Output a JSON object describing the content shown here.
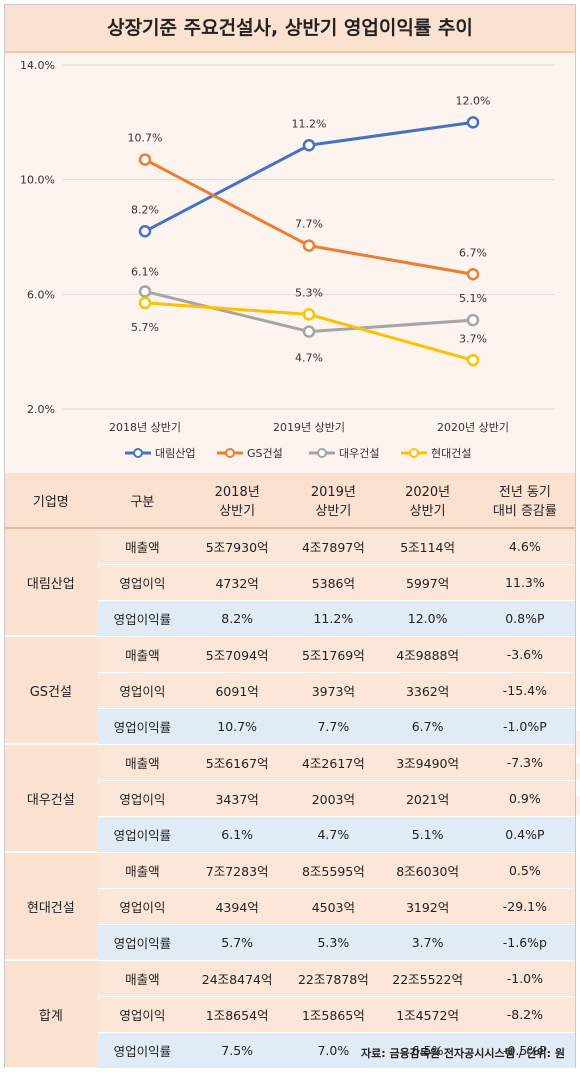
{
  "title": "상장기준 주요건설사, 상반기 영업이익률 추이",
  "chart_data": {
    "type": "line",
    "categories": [
      "2018년 상반기",
      "2019년 상반기",
      "2020년 상반기"
    ],
    "ylim": [
      2.0,
      14.0
    ],
    "yticks": [
      2.0,
      6.0,
      10.0,
      14.0
    ],
    "ytick_labels": [
      "2.0%",
      "6.0%",
      "10.0%",
      "14.0%"
    ],
    "grid": true,
    "legend_position": "bottom",
    "series": [
      {
        "name": "대림산업",
        "color": "#4472c4",
        "values": [
          8.2,
          11.2,
          12.0
        ],
        "labels": [
          "8.2%",
          "11.2%",
          "12.0%"
        ]
      },
      {
        "name": "GS건설",
        "color": "#ed7d31",
        "values": [
          10.7,
          7.7,
          6.7
        ],
        "labels": [
          "10.7%",
          "7.7%",
          "6.7%"
        ]
      },
      {
        "name": "대우건설",
        "color": "#a5a5a5",
        "values": [
          6.1,
          4.7,
          5.1
        ],
        "labels": [
          "6.1%",
          "4.7%",
          "5.1%"
        ]
      },
      {
        "name": "현대건설",
        "color": "#ffc000",
        "values": [
          5.7,
          5.3,
          3.7
        ],
        "labels": [
          "5.7%",
          "5.3%",
          "3.7%"
        ]
      }
    ]
  },
  "table": {
    "headers": [
      "기업명",
      "구분",
      "2018년\n상반기",
      "2019년\n상반기",
      "2020년\n상반기",
      "전년 동기\n대비 증감률"
    ],
    "groups": [
      {
        "company": "대림산업",
        "rows": [
          {
            "label": "매출액",
            "v": [
              "5조7930억",
              "4조7897억",
              "5조114억",
              "4.6%"
            ]
          },
          {
            "label": "영업이익",
            "v": [
              "4732억",
              "5386억",
              "5997억",
              "11.3%"
            ]
          },
          {
            "label": "영업이익률",
            "v": [
              "8.2%",
              "11.2%",
              "12.0%",
              "0.8%P"
            ]
          }
        ]
      },
      {
        "company": "GS건설",
        "rows": [
          {
            "label": "매출액",
            "v": [
              "5조7094억",
              "5조1769억",
              "4조9888억",
              "-3.6%"
            ]
          },
          {
            "label": "영업이익",
            "v": [
              "6091억",
              "3973억",
              "3362억",
              "-15.4%"
            ]
          },
          {
            "label": "영업이익률",
            "v": [
              "10.7%",
              "7.7%",
              "6.7%",
              "-1.0%P"
            ]
          }
        ]
      },
      {
        "company": "대우건설",
        "rows": [
          {
            "label": "매출액",
            "v": [
              "5조6167억",
              "4조2617억",
              "3조9490억",
              "-7.3%"
            ]
          },
          {
            "label": "영업이익",
            "v": [
              "3437억",
              "2003억",
              "2021억",
              "0.9%"
            ]
          },
          {
            "label": "영업이익률",
            "v": [
              "6.1%",
              "4.7%",
              "5.1%",
              "0.4%P"
            ]
          }
        ]
      },
      {
        "company": "현대건설",
        "rows": [
          {
            "label": "매출액",
            "v": [
              "7조7283억",
              "8조5595억",
              "8조6030억",
              "0.5%"
            ]
          },
          {
            "label": "영업이익",
            "v": [
              "4394억",
              "4503억",
              "3192억",
              "-29.1%"
            ]
          },
          {
            "label": "영업이익률",
            "v": [
              "5.7%",
              "5.3%",
              "3.7%",
              "-1.6%p"
            ]
          }
        ]
      },
      {
        "company": "합계",
        "rows": [
          {
            "label": "매출액",
            "v": [
              "24조8474억",
              "22조7878억",
              "22조5522억",
              "-1.0%"
            ]
          },
          {
            "label": "영업이익",
            "v": [
              "1조8654억",
              "1조5865억",
              "1조4572억",
              "-8.2%"
            ]
          },
          {
            "label": "영업이익률",
            "v": [
              "7.5%",
              "7.0%",
              "6.5%",
              "-0.5%P"
            ]
          }
        ]
      }
    ]
  },
  "watermark": "datanews",
  "footer": "자료: 금융감독원 전자공시시스템 / 단위: 원"
}
